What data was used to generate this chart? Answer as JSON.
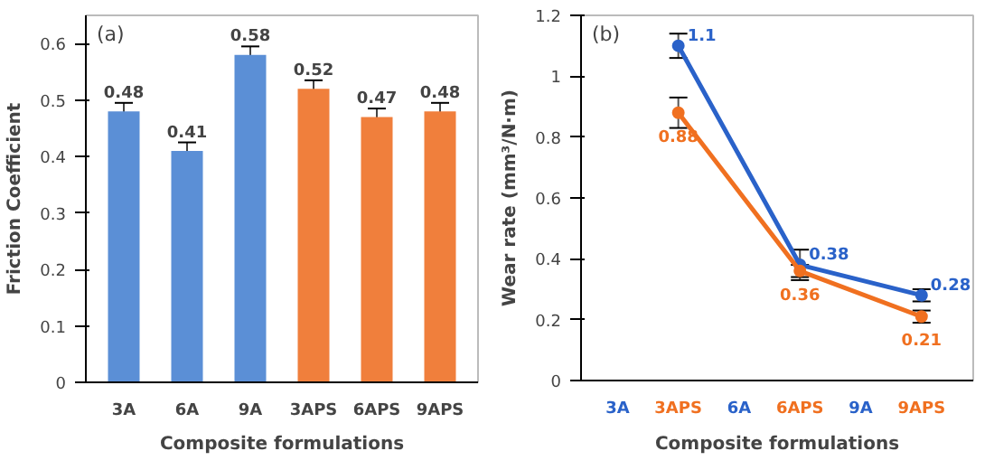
{
  "chart_data": [
    {
      "type": "bar",
      "annotations": [
        "(a)"
      ],
      "xlabel": "Composite formulations",
      "ylabel": "Friction Coefficient",
      "categories": [
        "3A",
        "6A",
        "9A",
        "3APS",
        "6APS",
        "9APS"
      ],
      "values": [
        0.48,
        0.41,
        0.58,
        0.52,
        0.47,
        0.48
      ],
      "errors": [
        0.015,
        0.015,
        0.015,
        0.015,
        0.015,
        0.015
      ],
      "colors": [
        "#5b8fd6",
        "#5b8fd6",
        "#5b8fd6",
        "#f07f3c",
        "#f07f3c",
        "#f07f3c"
      ],
      "ylim": [
        0,
        0.65
      ],
      "yticks": [
        0,
        0.1,
        0.2,
        0.3,
        0.4,
        0.5,
        0.6
      ],
      "data_labels": true
    },
    {
      "type": "line",
      "annotations": [
        "(b)"
      ],
      "xlabel": "Composite formulations",
      "ylabel": "Wear rate (mm³/N·m)",
      "categories": [
        "3A",
        "3APS",
        "6A",
        "6APS",
        "9A",
        "9APS"
      ],
      "series": [
        {
          "color": "#2a62c9",
          "values": [
            null,
            1.1,
            null,
            0.38,
            null,
            0.28
          ],
          "errors": [
            null,
            0.04,
            null,
            0.05,
            null,
            0.02
          ]
        },
        {
          "color": "#f07020",
          "values": [
            null,
            0.88,
            null,
            0.36,
            null,
            0.21
          ],
          "errors": [
            null,
            0.05,
            null,
            0.02,
            null,
            0.02
          ]
        }
      ],
      "ylim": [
        0,
        1.2
      ],
      "yticks": [
        0,
        0.2,
        0.4,
        0.6,
        0.8,
        1,
        1.2
      ],
      "data_labels": true,
      "marker": "circle",
      "line_style": "solid"
    }
  ]
}
